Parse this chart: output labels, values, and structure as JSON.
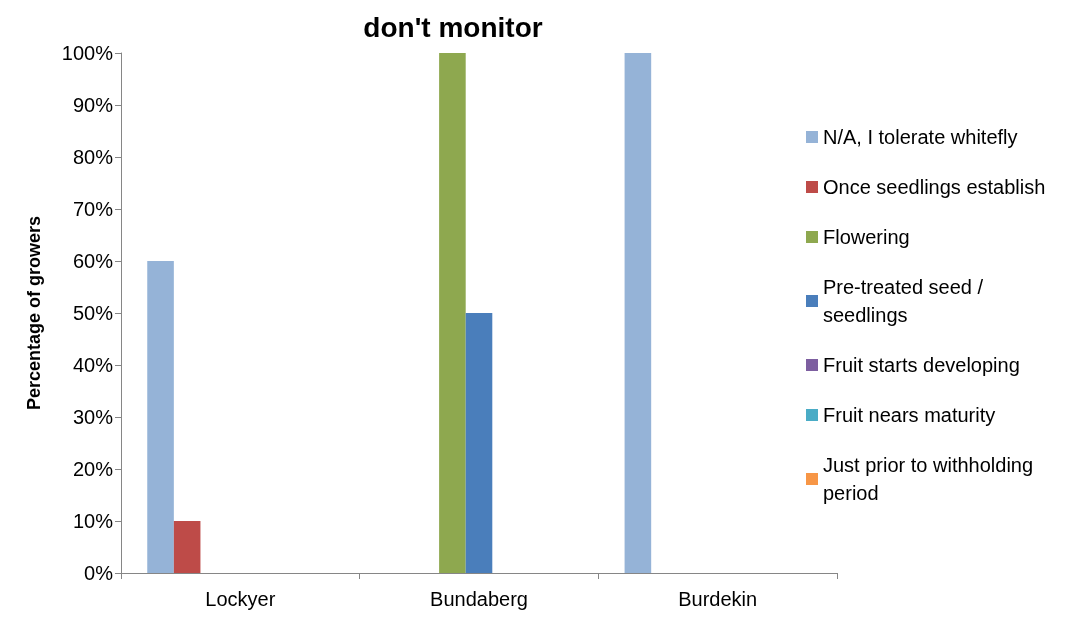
{
  "chart_data": {
    "type": "bar",
    "title": "don't monitor",
    "ylabel": "Percentage of growers",
    "categories": [
      "Lockyer",
      "Bundaberg",
      "Burdekin"
    ],
    "series": [
      {
        "name": "N/A, I tolerate whitefly",
        "color": "#95b3d7",
        "values": [
          60,
          0,
          100
        ]
      },
      {
        "name": "Once seedlings establish",
        "color": "#be4b48",
        "values": [
          10,
          0,
          0
        ]
      },
      {
        "name": "Flowering",
        "color": "#8ea84f",
        "values": [
          0,
          100,
          0
        ]
      },
      {
        "name": "Pre-treated seed / seedlings",
        "color": "#4a7ebb",
        "values": [
          0,
          50,
          0
        ]
      },
      {
        "name": "Fruit starts developing",
        "color": "#7d5fa0",
        "values": [
          0,
          0,
          0
        ]
      },
      {
        "name": "Fruit nears maturity",
        "color": "#4aacc6",
        "values": [
          0,
          0,
          0
        ]
      },
      {
        "name": "Just prior to withholding period",
        "color": "#f79646",
        "values": [
          0,
          0,
          0
        ]
      }
    ],
    "ylim": [
      0,
      100
    ],
    "yticks": [
      {
        "value": 0,
        "label": "0%"
      },
      {
        "value": 10,
        "label": "10%"
      },
      {
        "value": 20,
        "label": "20%"
      },
      {
        "value": 30,
        "label": "30%"
      },
      {
        "value": 40,
        "label": "40%"
      },
      {
        "value": 50,
        "label": "50%"
      },
      {
        "value": 60,
        "label": "60%"
      },
      {
        "value": 70,
        "label": "70%"
      },
      {
        "value": 80,
        "label": "80%"
      },
      {
        "value": 90,
        "label": "90%"
      },
      {
        "value": 100,
        "label": "100%"
      }
    ],
    "grid": false,
    "legend": "right"
  }
}
